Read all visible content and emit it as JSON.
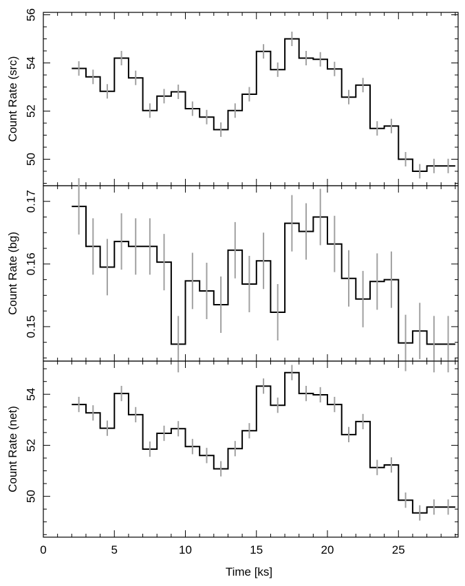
{
  "chart_data": [
    {
      "type": "line",
      "drawstyle": "steps",
      "ylabel": "Count Rate (src)",
      "ylim": [
        48.9,
        56.1
      ],
      "yticks": [
        50,
        52,
        54,
        56
      ],
      "xlim": [
        0,
        29.2
      ],
      "x_bin_edges": [
        2.0,
        3.0,
        4.0,
        5.0,
        6.0,
        7.0,
        8.0,
        9.0,
        10.0,
        11.0,
        12.0,
        13.0,
        14.0,
        15.0,
        16.0,
        17.0,
        18.0,
        19.0,
        20.0,
        21.0,
        22.0,
        23.0,
        24.0,
        25.0,
        26.0,
        27.0,
        28.0,
        29.0
      ],
      "series": [
        {
          "values": [
            53.77,
            53.42,
            52.82,
            54.2,
            53.38,
            52.02,
            52.62,
            52.8,
            52.1,
            51.75,
            51.23,
            52.02,
            52.7,
            54.48,
            53.72,
            55.0,
            54.2,
            54.15,
            53.75,
            52.58,
            53.08,
            51.28,
            51.38,
            50.0,
            49.5,
            49.72,
            49.72
          ],
          "errors": [
            0.3,
            0.3,
            0.3,
            0.3,
            0.3,
            0.3,
            0.3,
            0.3,
            0.3,
            0.3,
            0.3,
            0.3,
            0.3,
            0.3,
            0.3,
            0.3,
            0.3,
            0.3,
            0.3,
            0.3,
            0.3,
            0.3,
            0.3,
            0.3,
            0.3,
            0.3,
            0.3
          ]
        }
      ],
      "grid": false
    },
    {
      "type": "line",
      "drawstyle": "steps",
      "ylabel": "Count Rate (bg)",
      "ylim": [
        0.1445,
        0.1725
      ],
      "yticks": [
        0.15,
        0.16,
        0.17
      ],
      "xlim": [
        0,
        29.2
      ],
      "x_bin_edges": [
        2.0,
        3.0,
        4.0,
        5.0,
        6.0,
        7.0,
        8.0,
        9.0,
        10.0,
        11.0,
        12.0,
        13.0,
        14.0,
        15.0,
        16.0,
        17.0,
        18.0,
        19.0,
        20.0,
        21.0,
        22.0,
        23.0,
        24.0,
        25.0,
        26.0,
        27.0,
        28.0,
        29.0
      ],
      "series": [
        {
          "values": [
            0.1692,
            0.1628,
            0.1595,
            0.1636,
            0.1628,
            0.1628,
            0.1603,
            0.1472,
            0.1573,
            0.1557,
            0.1535,
            0.1622,
            0.1568,
            0.1605,
            0.1523,
            0.1665,
            0.1652,
            0.1675,
            0.1632,
            0.1577,
            0.1544,
            0.1572,
            0.1575,
            0.1474,
            0.1493,
            0.1472,
            0.1472
          ],
          "errors": [
            0.0045,
            0.0045,
            0.0045,
            0.0045,
            0.0045,
            0.0045,
            0.0045,
            0.0045,
            0.0045,
            0.0045,
            0.0045,
            0.0045,
            0.0045,
            0.0045,
            0.0045,
            0.0045,
            0.0045,
            0.0045,
            0.0045,
            0.0045,
            0.0045,
            0.0045,
            0.0045,
            0.0045,
            0.0045,
            0.0045,
            0.0045
          ]
        }
      ],
      "grid": false
    },
    {
      "type": "line",
      "drawstyle": "steps",
      "ylabel": "Count Rate (net)",
      "xlabel": "Time [ks]",
      "ylim": [
        48.4,
        55.3
      ],
      "yticks": [
        50,
        52,
        54
      ],
      "xlim": [
        0,
        29.2
      ],
      "xticks": [
        0,
        5,
        10,
        15,
        20,
        25
      ],
      "x_bin_edges": [
        2.0,
        3.0,
        4.0,
        5.0,
        6.0,
        7.0,
        8.0,
        9.0,
        10.0,
        11.0,
        12.0,
        13.0,
        14.0,
        15.0,
        16.0,
        17.0,
        18.0,
        19.0,
        20.0,
        21.0,
        22.0,
        23.0,
        24.0,
        25.0,
        26.0,
        27.0,
        28.0,
        29.0
      ],
      "series": [
        {
          "values": [
            53.6,
            53.27,
            52.67,
            54.03,
            53.2,
            51.85,
            52.47,
            52.65,
            51.95,
            51.6,
            51.08,
            51.87,
            52.57,
            54.32,
            53.57,
            54.85,
            54.03,
            53.98,
            53.6,
            52.42,
            52.93,
            51.13,
            51.23,
            49.85,
            49.35,
            49.58,
            49.58
          ],
          "errors": [
            0.3,
            0.3,
            0.3,
            0.3,
            0.3,
            0.3,
            0.3,
            0.3,
            0.3,
            0.3,
            0.3,
            0.3,
            0.3,
            0.3,
            0.3,
            0.3,
            0.3,
            0.3,
            0.3,
            0.3,
            0.3,
            0.3,
            0.3,
            0.3,
            0.3,
            0.3,
            0.3
          ]
        }
      ],
      "grid": false
    }
  ],
  "colors": {
    "line": "#000000",
    "errorbar": "#a0a0a0",
    "background": "#ffffff"
  }
}
